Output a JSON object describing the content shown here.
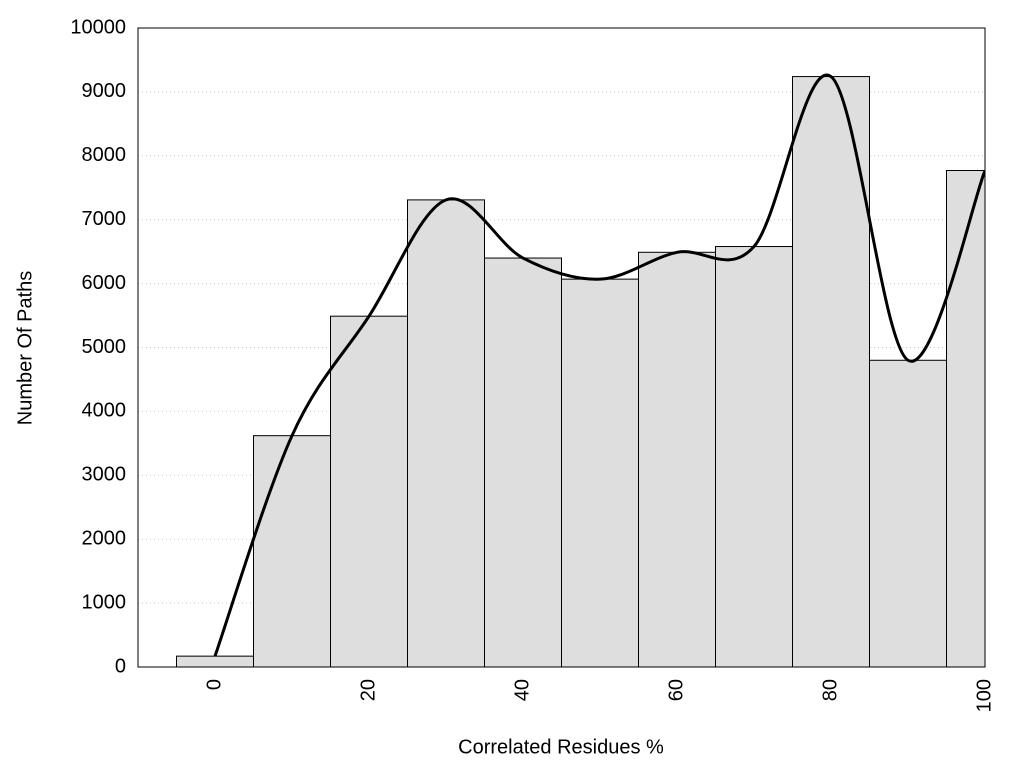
{
  "chart_data": {
    "type": "bar",
    "xlabel": "Correlated Residues %",
    "ylabel": "Number Of Paths",
    "x": [
      0,
      10,
      20,
      30,
      40,
      50,
      60,
      70,
      80,
      90,
      100
    ],
    "values": [
      170,
      3620,
      5490,
      7310,
      6400,
      6070,
      6490,
      6580,
      9240,
      4800,
      7770
    ],
    "color": "#dedede",
    "line_color": "#000000",
    "smooth_line": true,
    "xlim": [
      -10,
      100
    ],
    "xticks": [
      0,
      20,
      40,
      60,
      80,
      100
    ],
    "ylim": [
      0,
      10000
    ],
    "yticks": [
      0,
      1000,
      2000,
      3000,
      4000,
      5000,
      6000,
      7000,
      8000,
      9000,
      10000
    ],
    "grid": true
  }
}
